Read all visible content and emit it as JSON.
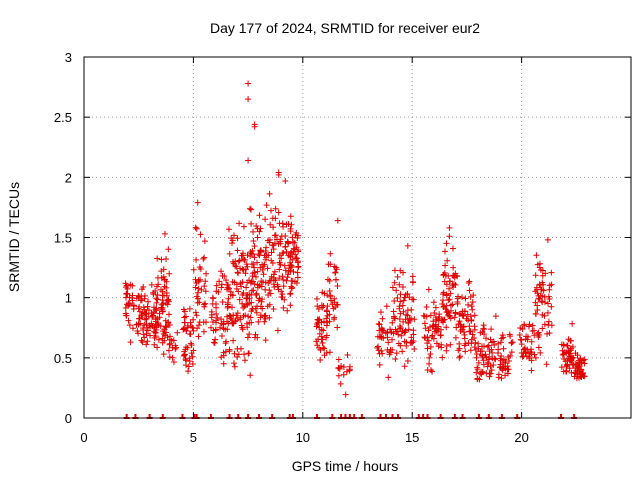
{
  "chart_data": {
    "type": "scatter",
    "title": "Day 177 of 2024, SRMTID for receiver eur2",
    "xlabel": "GPS time / hours",
    "ylabel": "SRMTID / TECUs",
    "xlim": [
      0,
      25
    ],
    "ylim": [
      0,
      3
    ],
    "xticks": [
      0,
      5,
      10,
      15,
      20
    ],
    "xtick_labels": [
      "0",
      "5",
      "10",
      "15",
      "20"
    ],
    "yticks": [
      0,
      0.5,
      1,
      1.5,
      2,
      2.5,
      3
    ],
    "ytick_labels": [
      "0",
      "0.5",
      "1",
      "1.5",
      "2",
      "2.5",
      "3"
    ],
    "grid": true,
    "marker": "+",
    "color": "#e00000",
    "series": [
      {
        "name": "SRMTID",
        "clusters": [
          {
            "x": [
              1.9,
              2.3
            ],
            "y": [
              0.5,
              1.35
            ],
            "n": 30
          },
          {
            "x": [
              2.4,
              3.3
            ],
            "y": [
              0.4,
              1.2
            ],
            "n": 80
          },
          {
            "x": [
              3.3,
              3.9
            ],
            "y": [
              0.3,
              1.5
            ],
            "n": 70
          },
          {
            "x": [
              3.9,
              4.3
            ],
            "y": [
              0.3,
              0.9
            ],
            "n": 15
          },
          {
            "x": [
              4.5,
              5.0
            ],
            "y": [
              0.25,
              1.05
            ],
            "n": 40
          },
          {
            "x": [
              5.0,
              5.6
            ],
            "y": [
              0.4,
              1.8
            ],
            "n": 40
          },
          {
            "x": [
              5.8,
              6.6
            ],
            "y": [
              0.3,
              1.4
            ],
            "n": 60
          },
          {
            "x": [
              6.6,
              7.6
            ],
            "y": [
              0.2,
              1.9
            ],
            "n": 110
          },
          {
            "x": [
              7.6,
              8.6
            ],
            "y": [
              0.4,
              2.0
            ],
            "n": 110
          },
          {
            "x": [
              8.6,
              9.5
            ],
            "y": [
              0.5,
              2.05
            ],
            "n": 80
          },
          {
            "x": [
              9.4,
              9.8
            ],
            "y": [
              0.9,
              1.8
            ],
            "n": 40
          },
          {
            "x": [
              10.6,
              11.1
            ],
            "y": [
              0.3,
              1.2
            ],
            "n": 40
          },
          {
            "x": [
              11.1,
              11.6
            ],
            "y": [
              0.45,
              1.65
            ],
            "n": 35
          },
          {
            "x": [
              11.6,
              12.2
            ],
            "y": [
              0.15,
              0.6
            ],
            "n": 15
          },
          {
            "x": [
              13.4,
              14.1
            ],
            "y": [
              0.3,
              1.0
            ],
            "n": 40
          },
          {
            "x": [
              14.1,
              15.1
            ],
            "y": [
              0.3,
              1.45
            ],
            "n": 80
          },
          {
            "x": [
              15.5,
              16.4
            ],
            "y": [
              0.3,
              1.1
            ],
            "n": 60
          },
          {
            "x": [
              16.4,
              17.1
            ],
            "y": [
              0.4,
              1.6
            ],
            "n": 65
          },
          {
            "x": [
              17.1,
              17.9
            ],
            "y": [
              0.3,
              1.25
            ],
            "n": 60
          },
          {
            "x": [
              17.9,
              18.9
            ],
            "y": [
              0.2,
              0.9
            ],
            "n": 60
          },
          {
            "x": [
              18.9,
              19.6
            ],
            "y": [
              0.2,
              0.85
            ],
            "n": 40
          },
          {
            "x": [
              19.9,
              20.6
            ],
            "y": [
              0.3,
              0.95
            ],
            "n": 40
          },
          {
            "x": [
              20.6,
              21.4
            ],
            "y": [
              0.4,
              1.5
            ],
            "n": 60
          },
          {
            "x": [
              21.8,
              22.4
            ],
            "y": [
              0.2,
              0.8
            ],
            "n": 50
          },
          {
            "x": [
              22.4,
              22.9
            ],
            "y": [
              0.2,
              0.6
            ],
            "n": 40
          }
        ],
        "points": [
          {
            "x": 7.5,
            "y": 2.78
          },
          {
            "x": 7.5,
            "y": 2.65
          },
          {
            "x": 7.8,
            "y": 2.44
          },
          {
            "x": 7.8,
            "y": 2.42
          },
          {
            "x": 7.5,
            "y": 2.14
          },
          {
            "x": 8.9,
            "y": 2.04
          },
          {
            "x": 8.9,
            "y": 2.02
          },
          {
            "x": 9.2,
            "y": 1.97
          },
          {
            "x": 16.7,
            "y": 1.58
          },
          {
            "x": 16.7,
            "y": 1.51
          },
          {
            "x": 21.2,
            "y": 1.48
          },
          {
            "x": 14.8,
            "y": 1.43
          },
          {
            "x": 11.6,
            "y": 1.64
          },
          {
            "x": 3.7,
            "y": 1.53
          },
          {
            "x": 5.2,
            "y": 1.79
          }
        ],
        "zero_points_x": [
          1.95,
          2.35,
          3.0,
          3.6,
          4.5,
          5.05,
          5.15,
          5.8,
          6.65,
          7.05,
          7.5,
          8.0,
          8.6,
          9.4,
          9.55,
          10.65,
          11.35,
          11.75,
          11.95,
          12.15,
          12.35,
          12.7,
          13.55,
          13.8,
          14.1,
          14.35,
          15.3,
          15.5,
          15.7,
          16.3,
          16.95,
          17.3,
          18.05,
          18.5,
          19.1,
          19.8,
          21.8,
          22.4
        ]
      }
    ]
  }
}
